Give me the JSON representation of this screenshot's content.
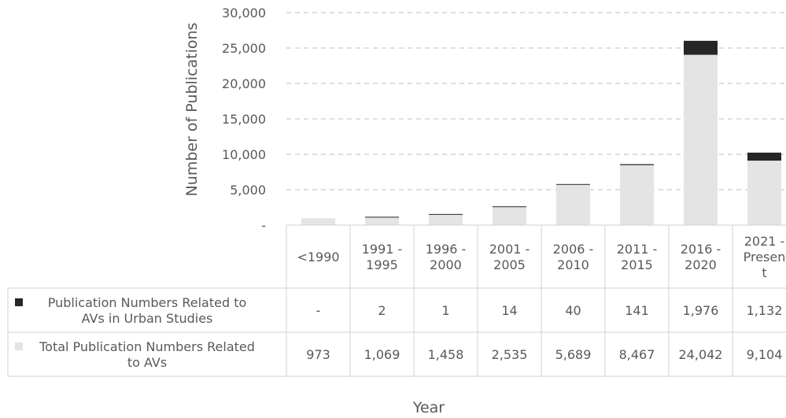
{
  "chart_data": {
    "type": "bar",
    "stacked": true,
    "categories": [
      "<1990",
      "1991 - 1995",
      "1996 - 2000",
      "2001 - 2005",
      "2006 - 2010",
      "2011 - 2015",
      "2016 - 2020",
      "2021 - Present"
    ],
    "category_lines": [
      [
        "<1990"
      ],
      [
        "1991 -",
        "1995"
      ],
      [
        "1996 -",
        "2000"
      ],
      [
        "2001 -",
        "2005"
      ],
      [
        "2006 -",
        "2010"
      ],
      [
        "2011 -",
        "2015"
      ],
      [
        "2016 -",
        "2020"
      ],
      [
        "2021 -",
        "Presen",
        "t"
      ]
    ],
    "series": [
      {
        "name": "Total Publication Numbers Related to AVs",
        "legend_lines": [
          "Total Publication Numbers Related",
          "to AVs"
        ],
        "values": [
          973,
          1069,
          1458,
          2535,
          5689,
          8467,
          24042,
          9104
        ],
        "labels": [
          "973",
          "1,069",
          "1,458",
          "2,535",
          "5,689",
          "8,467",
          "24,042",
          "9,104"
        ],
        "color": "#e4e4e4"
      },
      {
        "name": "Publication Numbers Related to AVs in Urban Studies",
        "legend_lines": [
          "Publication Numbers Related to",
          "AVs in Urban Studies"
        ],
        "values": [
          0,
          2,
          1,
          14,
          40,
          141,
          1976,
          1132
        ],
        "labels": [
          "-",
          "2",
          "1",
          "14",
          "40",
          "141",
          "1,976",
          "1,132"
        ],
        "color": "#262626"
      }
    ],
    "ylabel": "Number of Publications",
    "xlabel": "Year",
    "ylim": [
      0,
      30000
    ],
    "yticks": [
      0,
      5000,
      10000,
      15000,
      20000,
      25000,
      30000
    ],
    "ytick_labels": [
      "-",
      "5,000",
      "10,000",
      "15,000",
      "20,000",
      "25,000",
      "30,000"
    ],
    "grid": true,
    "legend": "data-table"
  }
}
